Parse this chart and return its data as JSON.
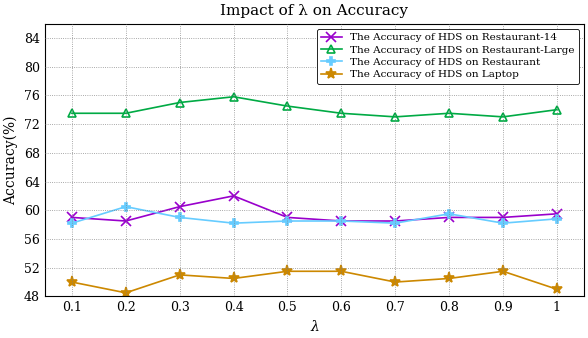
{
  "title": "Impact of λ on Accuracy",
  "xlabel": "λ",
  "ylabel": "Accuracy(%)",
  "x": [
    0.1,
    0.2,
    0.3,
    0.4,
    0.5,
    0.6,
    0.7,
    0.8,
    0.9,
    1.0
  ],
  "series": [
    {
      "label": "The Accuracy of HDS on Restaurant-14",
      "values": [
        59.0,
        58.5,
        60.5,
        62.0,
        59.0,
        58.5,
        58.5,
        59.0,
        59.0,
        59.5
      ],
      "color": "#9900cc",
      "marker": "x",
      "markersize": 7,
      "linestyle": "-",
      "linewidth": 1.2
    },
    {
      "label": "The Accuracy of HDS on Restaurant-Large",
      "values": [
        73.5,
        73.5,
        75.0,
        75.8,
        74.5,
        73.5,
        73.0,
        73.5,
        73.0,
        74.0
      ],
      "color": "#00aa44",
      "marker": "^",
      "markersize": 6,
      "linestyle": "-",
      "linewidth": 1.2
    },
    {
      "label": "The Accuracy of HDS on Restaurant",
      "values": [
        58.2,
        60.5,
        59.0,
        58.2,
        58.5,
        58.5,
        58.2,
        59.5,
        58.2,
        58.8
      ],
      "color": "#66ccff",
      "marker": "P",
      "markersize": 6,
      "linestyle": "-",
      "linewidth": 1.2
    },
    {
      "label": "The Accuracy of HDS on Laptop",
      "values": [
        50.0,
        48.5,
        51.0,
        50.5,
        51.5,
        51.5,
        50.0,
        50.5,
        51.5,
        49.0
      ],
      "color": "#cc8800",
      "marker": "*",
      "markersize": 8,
      "linestyle": "-",
      "linewidth": 1.2
    }
  ],
  "ylim": [
    48,
    86
  ],
  "yticks": [
    48,
    52,
    56,
    60,
    64,
    68,
    72,
    76,
    80,
    84
  ],
  "xticks": [
    0.1,
    0.2,
    0.3,
    0.4,
    0.5,
    0.6,
    0.7,
    0.8,
    0.9,
    1.0
  ],
  "xticklabels": [
    "0.1",
    "0.2",
    "0.3",
    "0.4",
    "0.5",
    "0.6",
    "0.7",
    "0.8",
    "0.9",
    "1"
  ],
  "grid": true,
  "background_color": "#ffffff",
  "title_fontsize": 11,
  "label_fontsize": 10,
  "tick_fontsize": 9,
  "legend_fontsize": 7.5
}
